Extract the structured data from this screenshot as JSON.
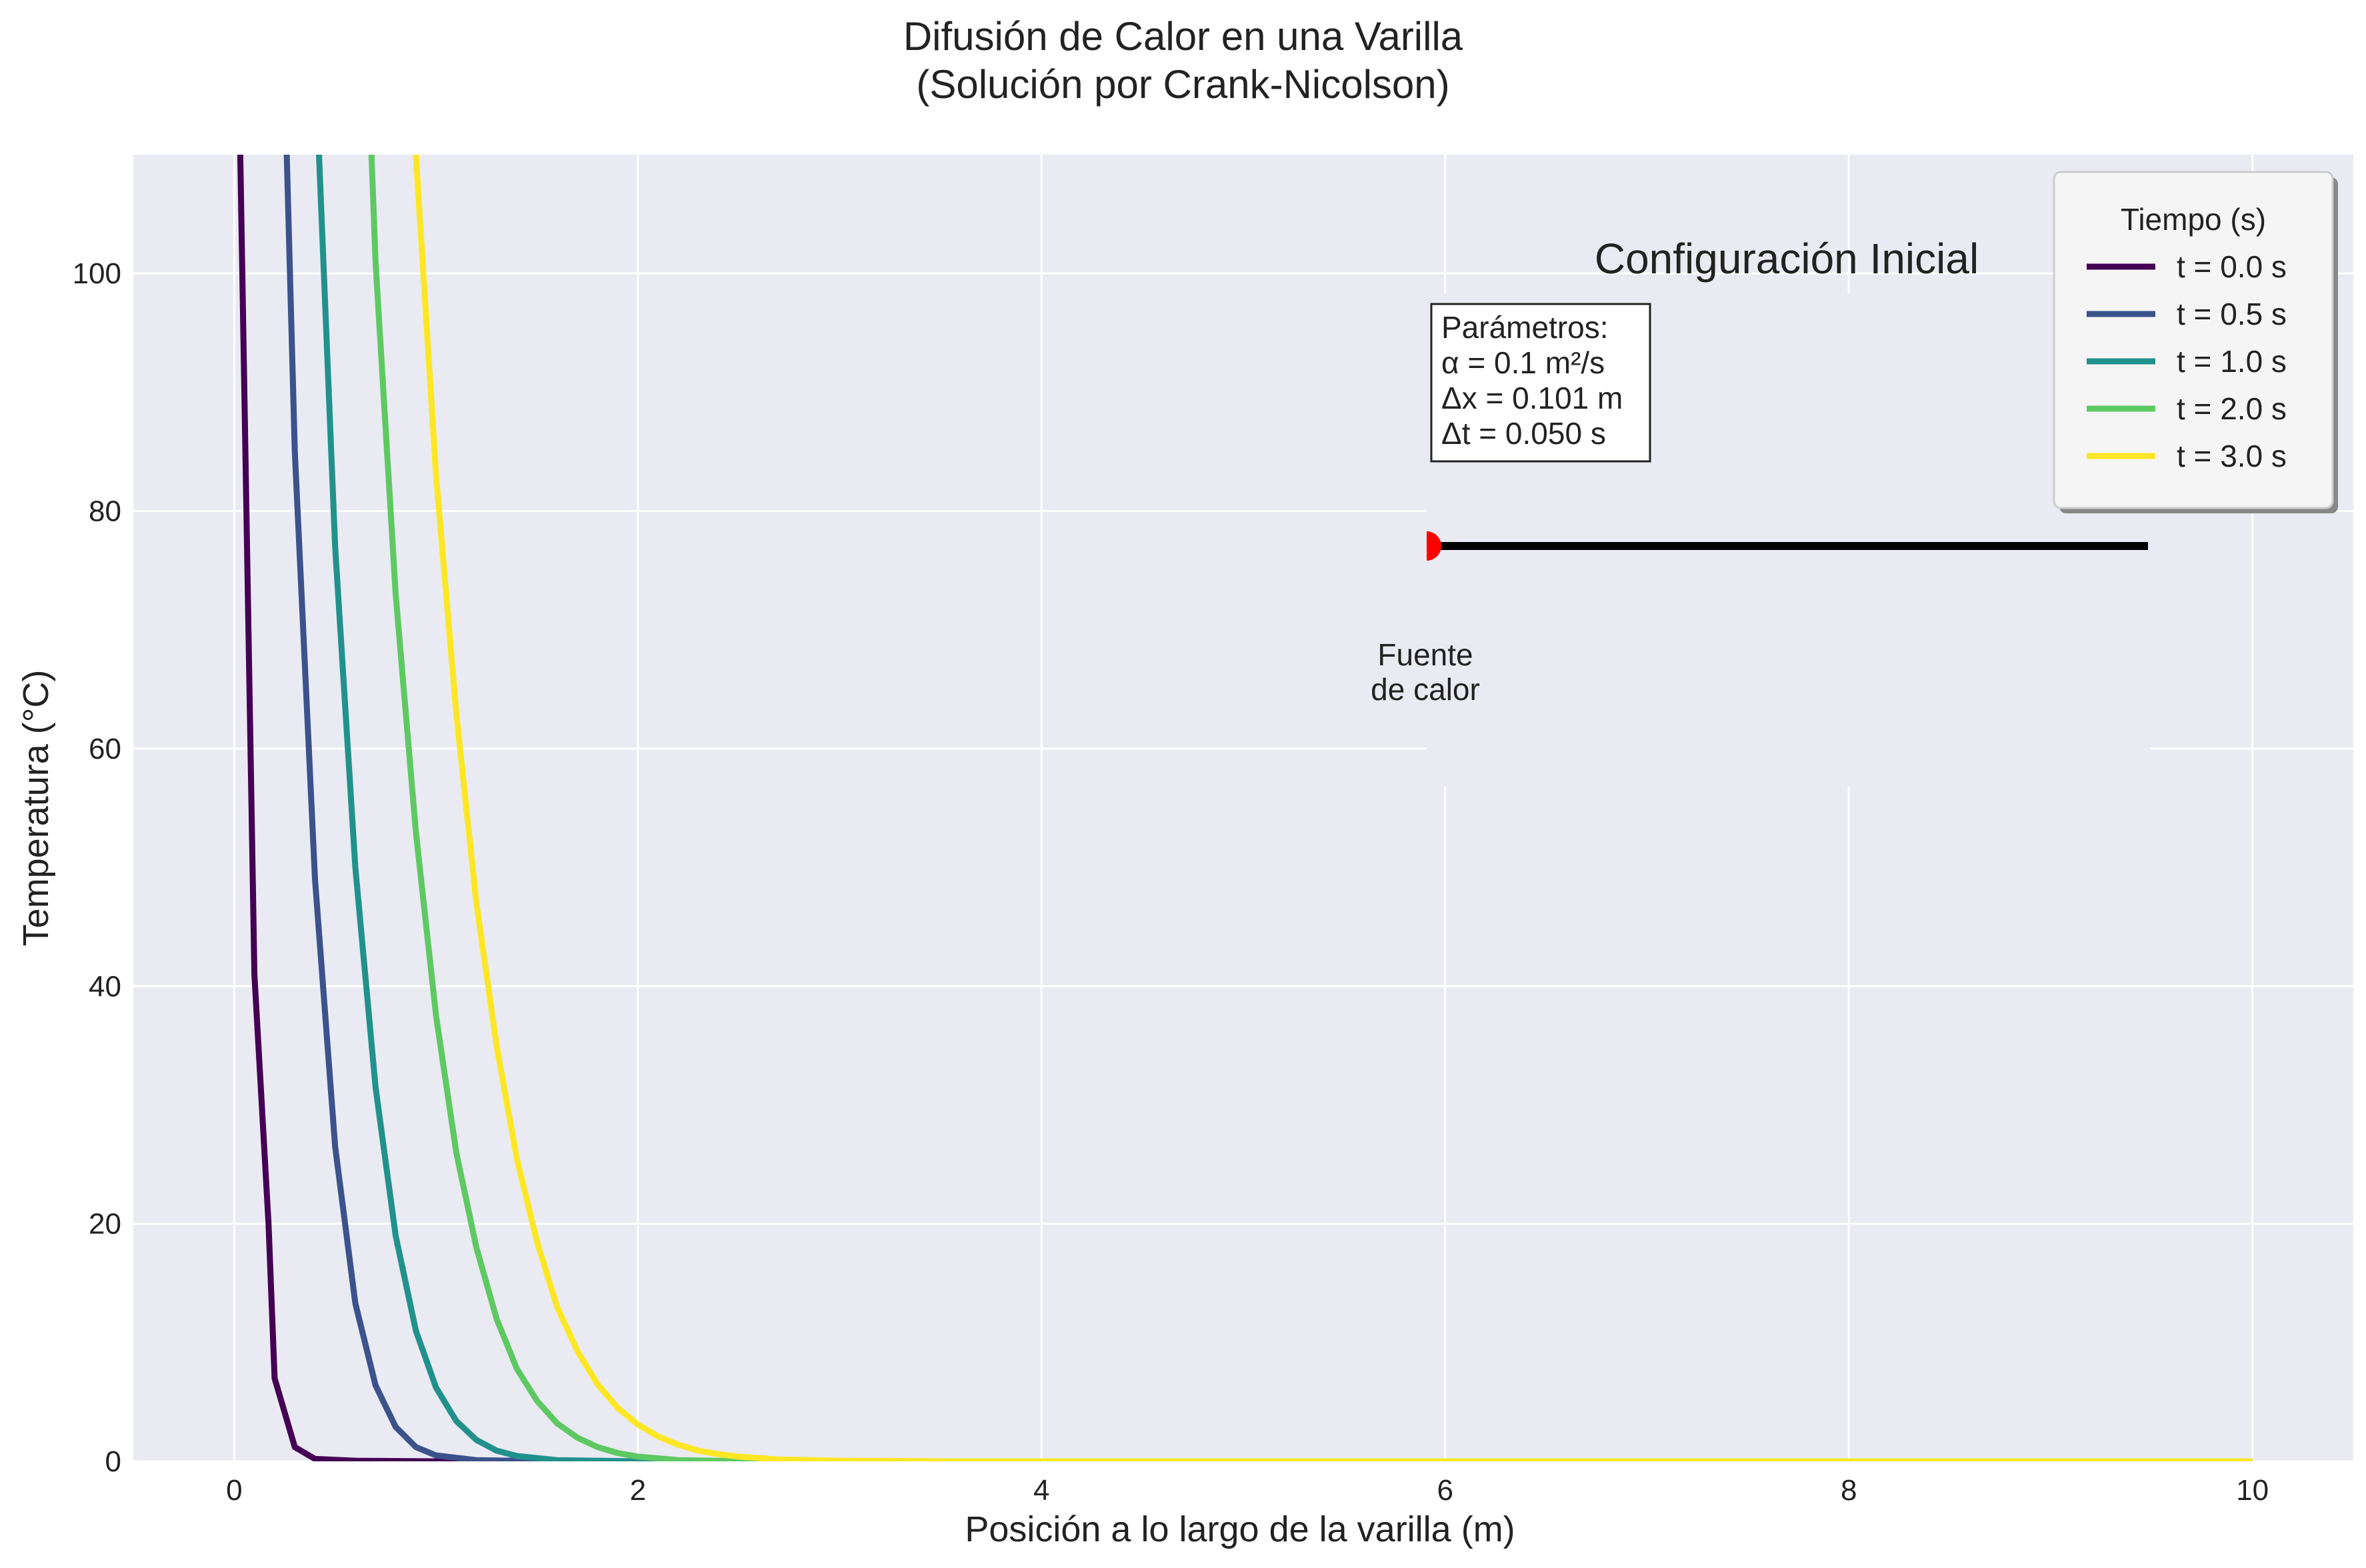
{
  "chart_data": {
    "type": "line",
    "title": "Difusión de Calor en una Varilla",
    "subtitle": "(Solución por Crank-Nicolson)",
    "xlabel": "Posición a lo largo de la varilla (m)",
    "ylabel": "Temperatura (°C)",
    "xlim": [
      -0.5,
      10.5
    ],
    "ylim": [
      0,
      110
    ],
    "xticks": [
      0,
      2,
      4,
      6,
      8,
      10
    ],
    "yticks": [
      0,
      20,
      40,
      60,
      80,
      100
    ],
    "grid": true,
    "legend": {
      "title": "Tiempo (s)",
      "placement": "top-right",
      "entries": [
        "t = 0.0 s",
        "t = 0.5 s",
        "t = 1.0 s",
        "t = 2.0 s",
        "t = 3.0 s"
      ]
    },
    "colors": [
      "#440154",
      "#3b528b",
      "#21918c",
      "#5ec962",
      "#fde725"
    ],
    "series": [
      {
        "name": "t = 0.0 s",
        "x": [
          0.03,
          0.1,
          0.17,
          0.2,
          0.3,
          0.4,
          0.6,
          1.0,
          2.0,
          4.0,
          6.0,
          8.0,
          10.0
        ],
        "y": [
          110,
          41,
          20,
          7,
          1.2,
          0.2,
          0.05,
          0,
          0,
          0,
          0,
          0,
          0
        ]
      },
      {
        "name": "t = 0.5 s",
        "x": [
          0.26,
          0.3,
          0.4,
          0.5,
          0.6,
          0.7,
          0.8,
          0.9,
          1.0,
          1.2,
          1.5,
          2.0,
          3.0,
          4.0,
          6.0,
          8.0,
          10.0
        ],
        "y": [
          110,
          85,
          49,
          26.5,
          13.3,
          6.4,
          2.9,
          1.2,
          0.5,
          0.1,
          0.02,
          0,
          0,
          0,
          0,
          0,
          0
        ]
      },
      {
        "name": "t = 1.0 s",
        "x": [
          0.42,
          0.5,
          0.6,
          0.7,
          0.8,
          0.9,
          1.0,
          1.1,
          1.2,
          1.3,
          1.4,
          1.6,
          2.0,
          3.0,
          4.0,
          6.0,
          8.0,
          10.0
        ],
        "y": [
          110,
          77,
          50,
          31.5,
          19,
          11,
          6.2,
          3.4,
          1.8,
          0.9,
          0.45,
          0.1,
          0,
          0,
          0,
          0,
          0,
          0
        ]
      },
      {
        "name": "t = 2.0 s",
        "x": [
          0.68,
          0.7,
          0.8,
          0.9,
          1.0,
          1.1,
          1.2,
          1.3,
          1.4,
          1.5,
          1.6,
          1.7,
          1.8,
          1.9,
          2.0,
          2.2,
          2.5,
          3.0,
          4.0,
          6.0,
          8.0,
          10.0
        ],
        "y": [
          110,
          101,
          73,
          53,
          37.5,
          26,
          18,
          12,
          7.8,
          5.1,
          3.2,
          2,
          1.2,
          0.7,
          0.4,
          0.1,
          0.02,
          0,
          0,
          0,
          0,
          0
        ]
      },
      {
        "name": "t = 3.0 s",
        "x": [
          0.9,
          1.0,
          1.1,
          1.2,
          1.3,
          1.4,
          1.5,
          1.6,
          1.7,
          1.8,
          1.9,
          2.0,
          2.1,
          2.2,
          2.3,
          2.4,
          2.5,
          2.7,
          3.0,
          3.5,
          4.0,
          6.0,
          8.0,
          10.0
        ],
        "y": [
          110,
          83,
          63,
          47,
          35,
          25.5,
          18.5,
          13,
          9.3,
          6.5,
          4.5,
          3.1,
          2.1,
          1.4,
          0.9,
          0.6,
          0.4,
          0.15,
          0.05,
          0,
          0,
          0,
          0,
          0
        ]
      }
    ],
    "annotations": {
      "inset_title": "Configuración Inicial",
      "params_lines": [
        "Parámetros:",
        "α = 0.1 m²/s",
        "Δx = 0.101 m",
        "Δt = 0.050 s"
      ],
      "source_label_lines": [
        "Fuente",
        "de calor"
      ],
      "source_color": "#ff0000",
      "rod_color": "#000000"
    }
  }
}
